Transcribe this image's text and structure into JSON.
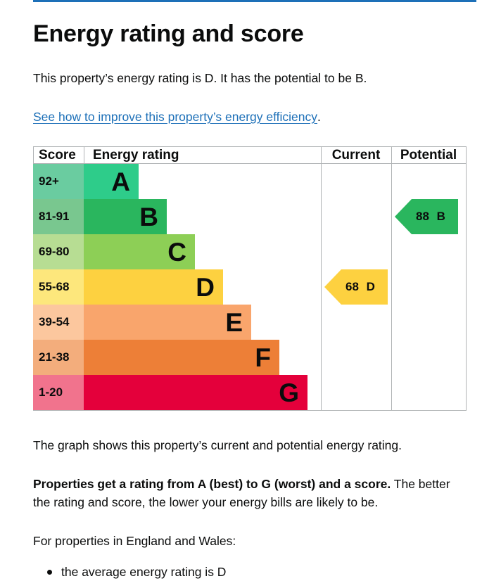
{
  "page": {
    "title": "Energy rating and score",
    "intro": "This property’s energy rating is D. It has the potential to be B.",
    "improve_link": "See how to improve this property’s energy efficiency",
    "improve_link_suffix": ".",
    "graph_description": "The graph shows this property’s current and potential energy rating.",
    "ratings_explanation_bold": "Properties get a rating from A (best) to G (worst) and a score.",
    "ratings_explanation_rest": " The better the rating and score, the lower your energy bills are likely to be.",
    "region_note": "For properties in England and Wales:",
    "bullets": [
      "the average energy rating is D"
    ]
  },
  "chart_data": {
    "type": "bar",
    "headers": {
      "score": "Score",
      "rating": "Energy rating",
      "current": "Current",
      "potential": "Potential"
    },
    "bands": [
      {
        "letter": "A",
        "score_range": "92+",
        "score_color": "#6acca0",
        "bar_color": "#2ecc8a",
        "scale": 1
      },
      {
        "letter": "B",
        "score_range": "81-91",
        "score_color": "#79c78f",
        "bar_color": "#2ab65e",
        "scale": 2
      },
      {
        "letter": "C",
        "score_range": "69-80",
        "score_color": "#b7dd93",
        "bar_color": "#8dcf56",
        "scale": 3
      },
      {
        "letter": "D",
        "score_range": "55-68",
        "score_color": "#fde77c",
        "bar_color": "#fdd140",
        "scale": 4
      },
      {
        "letter": "E",
        "score_range": "39-54",
        "score_color": "#fcc79e",
        "bar_color": "#f9a56c",
        "scale": 5
      },
      {
        "letter": "F",
        "score_range": "21-38",
        "score_color": "#f3ad7c",
        "bar_color": "#ed7f37",
        "scale": 6
      },
      {
        "letter": "G",
        "score_range": "1-20",
        "score_color": "#f1738d",
        "bar_color": "#e4003b",
        "scale": 7
      }
    ],
    "current": {
      "score": 68,
      "rating": "D",
      "label": "68 D",
      "color": "#fdd140"
    },
    "potential": {
      "score": 88,
      "rating": "B",
      "label": "88 B",
      "color": "#2ab65e"
    }
  }
}
